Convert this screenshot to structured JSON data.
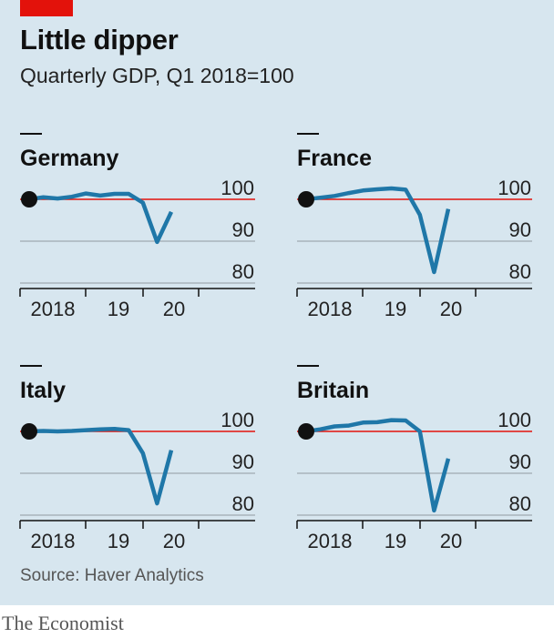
{
  "title": "Little dipper",
  "subtitle": "Quarterly GDP, Q1 2018=100",
  "source": "Source: Haver Analytics",
  "brand": "The Economist",
  "colors": {
    "line": "#1f77a8",
    "reference": "#e3120b",
    "background": "#d7e6ef",
    "accent": "#e3120b"
  },
  "chart_data": [
    {
      "type": "line",
      "title": "Germany",
      "x": [
        "2018 Q1",
        "2018 Q2",
        "2018 Q3",
        "2018 Q4",
        "2019 Q1",
        "2019 Q2",
        "2019 Q3",
        "2019 Q4",
        "2020 Q1",
        "2020 Q2",
        "2020 Q3"
      ],
      "values": [
        100,
        100.5,
        100.2,
        100.6,
        101.4,
        100.9,
        101.3,
        101.3,
        99.2,
        89.8,
        97.0
      ],
      "ylim": [
        80,
        100
      ],
      "yticks": [
        "100",
        "90",
        "80"
      ],
      "xticks": [
        "2018",
        "19",
        "20"
      ],
      "reference": 100
    },
    {
      "type": "line",
      "title": "France",
      "x": [
        "2018 Q1",
        "2018 Q2",
        "2018 Q3",
        "2018 Q4",
        "2019 Q1",
        "2019 Q2",
        "2019 Q3",
        "2019 Q4",
        "2020 Q1",
        "2020 Q2",
        "2020 Q3"
      ],
      "values": [
        100,
        100.4,
        100.8,
        101.5,
        102.1,
        102.4,
        102.6,
        102.3,
        96.3,
        82.6,
        97.7
      ],
      "ylim": [
        80,
        100
      ],
      "yticks": [
        "100",
        "90",
        "80"
      ],
      "xticks": [
        "2018",
        "19",
        "20"
      ],
      "reference": 100
    },
    {
      "type": "line",
      "title": "Italy",
      "x": [
        "2018 Q1",
        "2018 Q2",
        "2018 Q3",
        "2018 Q4",
        "2019 Q1",
        "2019 Q2",
        "2019 Q3",
        "2019 Q4",
        "2020 Q1",
        "2020 Q2",
        "2020 Q3"
      ],
      "values": [
        100,
        100.1,
        100.0,
        100.1,
        100.3,
        100.5,
        100.6,
        100.3,
        94.8,
        82.8,
        95.5
      ],
      "ylim": [
        80,
        100
      ],
      "yticks": [
        "100",
        "90",
        "80"
      ],
      "xticks": [
        "2018",
        "19",
        "20"
      ],
      "reference": 100
    },
    {
      "type": "line",
      "title": "Britain",
      "x": [
        "2018 Q1",
        "2018 Q2",
        "2018 Q3",
        "2018 Q4",
        "2019 Q1",
        "2019 Q2",
        "2019 Q3",
        "2019 Q4",
        "2020 Q1",
        "2020 Q2",
        "2020 Q3"
      ],
      "values": [
        100,
        100.5,
        101.2,
        101.4,
        102.1,
        102.2,
        102.7,
        102.6,
        100.0,
        81.1,
        93.5
      ],
      "ylim": [
        80,
        100
      ],
      "yticks": [
        "100",
        "90",
        "80"
      ],
      "xticks": [
        "2018",
        "19",
        "20"
      ],
      "reference": 100
    }
  ]
}
